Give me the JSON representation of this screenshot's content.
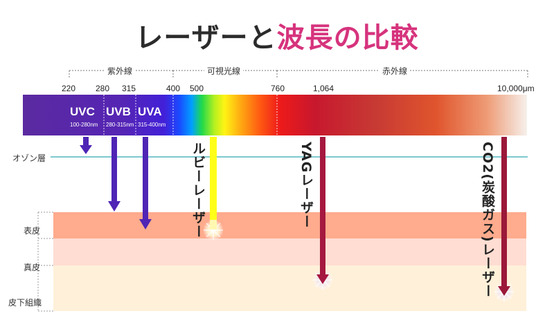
{
  "title": {
    "part1": "レーザーと",
    "part2": "波長の比較"
  },
  "regions": [
    {
      "label": "紫外線"
    },
    {
      "label": "可視光線"
    },
    {
      "label": "赤外線"
    }
  ],
  "ticks": [
    "220",
    "280",
    "315",
    "400",
    "500",
    "760",
    "1,064",
    "10,000μm"
  ],
  "uv_bands": [
    {
      "name": "UVC",
      "range": "100-280nm"
    },
    {
      "name": "UVB",
      "range": "280-315nm"
    },
    {
      "name": "UVA",
      "range": "315-400nm"
    }
  ],
  "ozone_label": "オゾン層",
  "skin_layers": [
    {
      "label": "表皮",
      "color": "#ffab8d"
    },
    {
      "label": "真皮",
      "color": "#ffddd2"
    },
    {
      "label": "皮下組織",
      "color": "#fff0d9"
    }
  ],
  "lasers": [
    {
      "label": "ルビーレーザー",
      "color": "#ffff1a",
      "depth": "epidermis"
    },
    {
      "label": "YAGレーザー",
      "color": "#a5183f",
      "depth": "subcutaneous"
    },
    {
      "label": "CO2(炭酸ガス)レーザー",
      "color": "#9b1839",
      "depth": "subcutaneous"
    }
  ],
  "colors": {
    "uv_arrow": "#4f25b5",
    "ozone_line": "#7cc9d0",
    "title_accent": "#d6337d"
  }
}
